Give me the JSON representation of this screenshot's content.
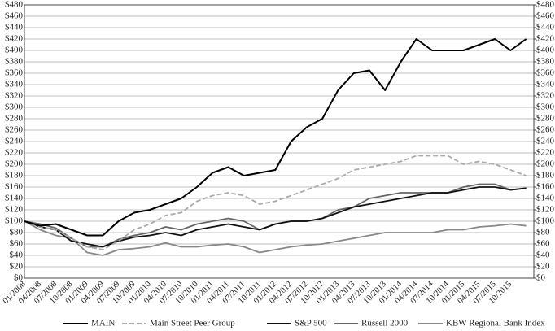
{
  "chart_data": {
    "type": "line",
    "categories": [
      "01/2008",
      "04/2008",
      "07/2008",
      "10/2008",
      "01/2009",
      "04/2009",
      "07/2009",
      "10/2009",
      "01/2010",
      "04/2010",
      "07/2010",
      "10/2010",
      "01/2011",
      "04/2011",
      "07/2011",
      "10/2011",
      "01/2012",
      "04/2012",
      "07/2012",
      "10/2012",
      "01/2013",
      "04/2013",
      "07/2013",
      "10/2013",
      "01/2014",
      "04/2014",
      "07/2014",
      "10/2014",
      "01/2015",
      "04/2015",
      "07/2015",
      "10/2015",
      null
    ],
    "series": [
      {
        "name": "MAIN",
        "color": "#000000",
        "dashed": false,
        "values": [
          100,
          92,
          95,
          85,
          75,
          75,
          100,
          115,
          120,
          130,
          140,
          160,
          185,
          195,
          180,
          185,
          190,
          240,
          265,
          280,
          330,
          360,
          365,
          330,
          380,
          420,
          400,
          400,
          400,
          410,
          420,
          400,
          420
        ]
      },
      {
        "name": "Main Street Peer Group",
        "color": "#aaaaaa",
        "dashed": true,
        "values": [
          100,
          90,
          85,
          70,
          55,
          50,
          65,
          85,
          95,
          110,
          115,
          135,
          145,
          150,
          145,
          130,
          135,
          145,
          155,
          165,
          175,
          190,
          195,
          200,
          205,
          215,
          215,
          215,
          200,
          205,
          200,
          190,
          180
        ]
      },
      {
        "name": "S&P 500",
        "color": "#111111",
        "dashed": false,
        "values": [
          100,
          90,
          85,
          65,
          60,
          55,
          65,
          72,
          75,
          80,
          75,
          85,
          90,
          95,
          90,
          85,
          95,
          100,
          100,
          105,
          115,
          125,
          130,
          135,
          140,
          145,
          150,
          150,
          155,
          160,
          160,
          155,
          158
        ]
      },
      {
        "name": "Russell 2000",
        "color": "#666666",
        "dashed": false,
        "values": [
          100,
          95,
          88,
          70,
          55,
          55,
          68,
          75,
          80,
          90,
          85,
          95,
          100,
          105,
          100,
          85,
          95,
          100,
          100,
          105,
          120,
          125,
          140,
          145,
          150,
          150,
          150,
          150,
          160,
          165,
          165,
          155,
          158
        ]
      },
      {
        "name": "KBW Regional Bank Index",
        "color": "#888888",
        "dashed": false,
        "values": [
          100,
          85,
          75,
          70,
          45,
          40,
          50,
          52,
          55,
          62,
          55,
          55,
          58,
          60,
          55,
          45,
          50,
          55,
          58,
          60,
          65,
          70,
          75,
          80,
          80,
          80,
          80,
          85,
          85,
          90,
          92,
          95,
          92
        ]
      }
    ],
    "ylim": [
      0,
      480
    ],
    "yticks": [
      {
        "value": 0,
        "label": "$0"
      },
      {
        "value": 20,
        "label": "$20"
      },
      {
        "value": 40,
        "label": "$40"
      },
      {
        "value": 60,
        "label": "$60"
      },
      {
        "value": 80,
        "label": "$80"
      },
      {
        "value": 100,
        "label": "$100"
      },
      {
        "value": 120,
        "label": "$120"
      },
      {
        "value": 140,
        "label": "$140"
      },
      {
        "value": 160,
        "label": "$160"
      },
      {
        "value": 180,
        "label": "$180"
      },
      {
        "value": 200,
        "label": "$200"
      },
      {
        "value": 220,
        "label": "$220"
      },
      {
        "value": 240,
        "label": "$240"
      },
      {
        "value": 260,
        "label": "$260"
      },
      {
        "value": 280,
        "label": "$280"
      },
      {
        "value": 300,
        "label": "$300"
      },
      {
        "value": 320,
        "label": "$320"
      },
      {
        "value": 340,
        "label": "$340"
      },
      {
        "value": 360,
        "label": "$360"
      },
      {
        "value": 380,
        "label": "$380"
      },
      {
        "value": 400,
        "label": "$400"
      },
      {
        "value": 420,
        "label": "$420"
      },
      {
        "value": 440,
        "label": "$440"
      },
      {
        "value": 460,
        "label": "$460"
      },
      {
        "value": 480,
        "label": "$480"
      }
    ],
    "y2lim": [
      0,
      480
    ],
    "y2ticks": [
      {
        "value": 0,
        "label": "$0"
      },
      {
        "value": 20,
        "label": "$20"
      },
      {
        "value": 40,
        "label": "$40"
      },
      {
        "value": 60,
        "label": "$60"
      },
      {
        "value": 80,
        "label": "$80"
      },
      {
        "value": 100,
        "label": "$100"
      },
      {
        "value": 120,
        "label": "$120"
      },
      {
        "value": 140,
        "label": "$140"
      },
      {
        "value": 160,
        "label": "$160"
      },
      {
        "value": 180,
        "label": "$180"
      },
      {
        "value": 200,
        "label": "$200"
      },
      {
        "value": 220,
        "label": "$220"
      },
      {
        "value": 240,
        "label": "$240"
      },
      {
        "value": 260,
        "label": "$260"
      },
      {
        "value": 280,
        "label": "$280"
      },
      {
        "value": 300,
        "label": "$300"
      },
      {
        "value": 320,
        "label": "$320"
      },
      {
        "value": 340,
        "label": "$340"
      },
      {
        "value": 360,
        "label": "$360"
      },
      {
        "value": 380,
        "label": "$380"
      },
      {
        "value": 400,
        "label": "$400"
      },
      {
        "value": 420,
        "label": "$420"
      },
      {
        "value": 440,
        "label": "$440"
      },
      {
        "value": 460,
        "label": "$460"
      },
      {
        "value": 480,
        "label": "$480"
      }
    ],
    "grid": true,
    "legend": "bottom"
  }
}
